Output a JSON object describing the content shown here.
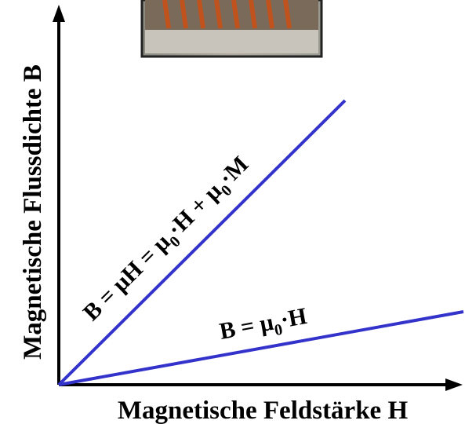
{
  "x_axis_label": "Magnetische Feldstärke H",
  "y_axis_label": "Magnetische Flussdichte B",
  "lines": [
    {
      "label_parts": [
        "B = μH = μ",
        "0",
        "·H + μ",
        "0",
        "·M"
      ]
    },
    {
      "label_parts": [
        "B = μ",
        "0",
        "·H"
      ]
    }
  ]
}
